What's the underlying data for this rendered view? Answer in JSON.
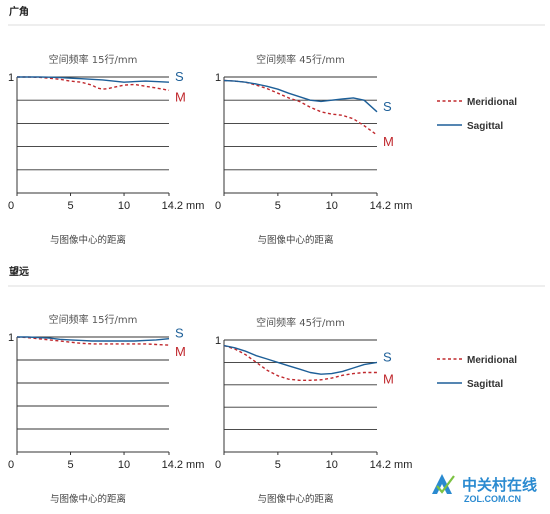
{
  "sections": [
    {
      "title": "广角"
    },
    {
      "title": "望远"
    }
  ],
  "watermark": {
    "main": "中关村在线",
    "sub": "ZOL.COM.CN"
  },
  "colors": {
    "meridional": "#c0282d",
    "sagittal": "#1d5f98",
    "grid": "#333333",
    "divider": "#dddddd"
  },
  "chart_data": [
    {
      "type": "line",
      "section": "广角",
      "title": "空间频率 15行/mm",
      "xlabel": "与图像中心的距离",
      "xticks": [
        "0",
        "5",
        "10",
        "14.2 mm"
      ],
      "xlim": [
        0,
        14.2
      ],
      "ylim": [
        0,
        1
      ],
      "y_top_label": "1",
      "grid": true,
      "s_label": "S",
      "m_label": "M",
      "series": [
        {
          "name": "Meridional",
          "style": "dashed",
          "x": [
            0,
            1,
            2,
            3,
            4,
            5,
            6,
            7,
            7.5,
            8,
            8.5,
            9,
            10,
            11,
            12,
            13,
            14.2
          ],
          "y": [
            1.0,
            1.0,
            0.997,
            0.99,
            0.98,
            0.965,
            0.955,
            0.93,
            0.905,
            0.895,
            0.9,
            0.91,
            0.93,
            0.935,
            0.92,
            0.905,
            0.885
          ]
        },
        {
          "name": "Sagittal",
          "style": "solid",
          "x": [
            0,
            1,
            2,
            3,
            4,
            5,
            6,
            7,
            8,
            9,
            10,
            11,
            12,
            13,
            14.2
          ],
          "y": [
            1.0,
            1.0,
            1.0,
            0.998,
            0.995,
            0.99,
            0.985,
            0.98,
            0.975,
            0.965,
            0.955,
            0.96,
            0.965,
            0.96,
            0.955
          ]
        }
      ]
    },
    {
      "type": "line",
      "section": "广角",
      "title": "空间频率 45行/mm",
      "xlabel": "与图像中心的距离",
      "xticks": [
        "0",
        "5",
        "10",
        "14.2 mm"
      ],
      "xlim": [
        0,
        14.2
      ],
      "ylim": [
        0,
        1
      ],
      "y_top_label": "1",
      "grid": true,
      "s_label": "S",
      "m_label": "M",
      "series": [
        {
          "name": "Meridional",
          "style": "dashed",
          "x": [
            0,
            1,
            2,
            3,
            4,
            5,
            6,
            7,
            8,
            9,
            10,
            11,
            12,
            13,
            14.2
          ],
          "y": [
            0.97,
            0.965,
            0.955,
            0.93,
            0.9,
            0.86,
            0.82,
            0.79,
            0.74,
            0.7,
            0.68,
            0.67,
            0.64,
            0.58,
            0.5
          ]
        },
        {
          "name": "Sagittal",
          "style": "solid",
          "x": [
            0,
            1,
            2,
            3,
            4,
            5,
            6,
            7,
            8,
            9,
            10,
            11,
            12,
            13,
            14.2
          ],
          "y": [
            0.97,
            0.965,
            0.955,
            0.94,
            0.92,
            0.895,
            0.86,
            0.83,
            0.8,
            0.79,
            0.8,
            0.81,
            0.82,
            0.8,
            0.7
          ]
        }
      ]
    },
    {
      "type": "line",
      "section": "望远",
      "title": "空间频率 15行/mm",
      "xlabel": "与图像中心的距离",
      "xticks": [
        "0",
        "5",
        "10",
        "14.2 mm"
      ],
      "xlim": [
        0,
        14.2
      ],
      "ylim": [
        0,
        1
      ],
      "y_top_label": "1",
      "grid": true,
      "s_label": "S",
      "m_label": "M",
      "series": [
        {
          "name": "Meridional",
          "style": "dashed",
          "x": [
            0,
            1,
            2,
            3,
            4,
            5,
            6,
            7,
            8,
            9,
            10,
            11,
            12,
            13,
            14.2
          ],
          "y": [
            1.0,
            0.995,
            0.985,
            0.975,
            0.965,
            0.955,
            0.945,
            0.94,
            0.94,
            0.94,
            0.94,
            0.94,
            0.94,
            0.935,
            0.93
          ]
        },
        {
          "name": "Sagittal",
          "style": "solid",
          "x": [
            0,
            1,
            2,
            3,
            4,
            5,
            6,
            7,
            8,
            9,
            10,
            11,
            12,
            13,
            14.2
          ],
          "y": [
            1.0,
            1.0,
            0.995,
            0.99,
            0.98,
            0.975,
            0.97,
            0.965,
            0.965,
            0.965,
            0.965,
            0.965,
            0.97,
            0.975,
            0.985
          ]
        }
      ]
    },
    {
      "type": "line",
      "section": "望远",
      "title": "空间频率 45行/mm",
      "xlabel": "与图像中心的距离",
      "xticks": [
        "0",
        "5",
        "10",
        "14.2 mm"
      ],
      "xlim": [
        0,
        14.2
      ],
      "ylim": [
        0,
        1
      ],
      "y_top_label": "1",
      "grid": true,
      "s_label": "S",
      "m_label": "M",
      "series": [
        {
          "name": "Meridional",
          "style": "dashed",
          "x": [
            0,
            1,
            2,
            3,
            4,
            5,
            6,
            7,
            8,
            9,
            10,
            11,
            12,
            13,
            14.2
          ],
          "y": [
            0.95,
            0.92,
            0.87,
            0.8,
            0.73,
            0.68,
            0.65,
            0.64,
            0.64,
            0.645,
            0.66,
            0.685,
            0.7,
            0.71,
            0.71
          ]
        },
        {
          "name": "Sagittal",
          "style": "solid",
          "x": [
            0,
            1,
            2,
            3,
            4,
            5,
            6,
            7,
            8,
            9,
            10,
            11,
            12,
            13,
            14.2
          ],
          "y": [
            0.95,
            0.93,
            0.9,
            0.86,
            0.83,
            0.8,
            0.77,
            0.74,
            0.71,
            0.695,
            0.7,
            0.72,
            0.75,
            0.78,
            0.8
          ]
        }
      ]
    }
  ],
  "legends": [
    {
      "meridional": "Meridional",
      "sagittal": "Sagittal"
    },
    {
      "meridional": "Meridional",
      "sagittal": "Sagittal"
    }
  ]
}
